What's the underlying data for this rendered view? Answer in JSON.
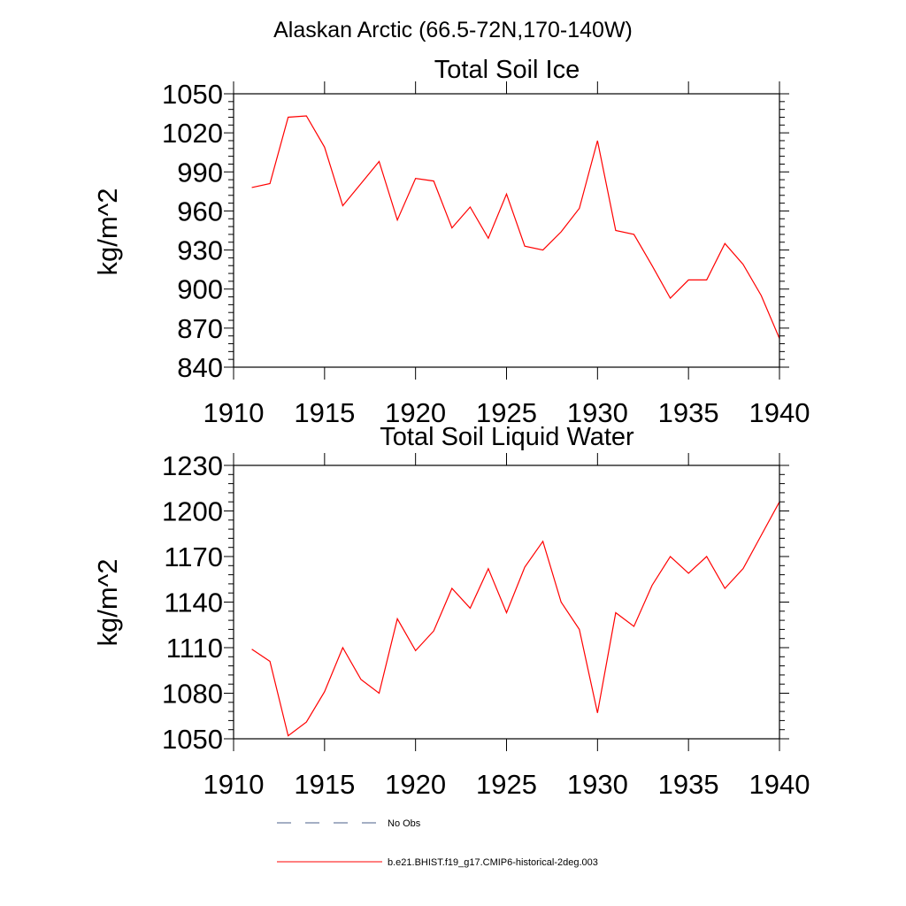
{
  "figure": {
    "suptitle": "Alaskan Arctic (66.5-72N,170-140W)"
  },
  "chart_data": [
    {
      "type": "line",
      "title": "Total Soil Ice",
      "xlabel": "",
      "ylabel": "kg/m^2",
      "xlim": [
        1910,
        1940
      ],
      "ylim": [
        840,
        1050
      ],
      "xticks": [
        1910,
        1915,
        1920,
        1925,
        1930,
        1935,
        1940
      ],
      "yticks": [
        840,
        870,
        900,
        930,
        960,
        990,
        1020,
        1050
      ],
      "grid": false,
      "series": [
        {
          "name": "b.e21.BHIST.f19_g17.CMIP6-historical-2deg.003",
          "color": "#ff0000",
          "x": [
            1911,
            1912,
            1913,
            1914,
            1915,
            1916,
            1917,
            1918,
            1919,
            1920,
            1921,
            1922,
            1923,
            1924,
            1925,
            1926,
            1927,
            1928,
            1929,
            1930,
            1931,
            1932,
            1933,
            1934,
            1935,
            1936,
            1937,
            1938,
            1939,
            1940
          ],
          "y": [
            978,
            981,
            1032,
            1033,
            1009,
            964,
            981,
            998,
            953,
            985,
            983,
            947,
            963,
            939,
            973,
            933,
            930,
            944,
            962,
            1014,
            945,
            942,
            918,
            893,
            907,
            907,
            935,
            919,
            895,
            862
          ]
        }
      ]
    },
    {
      "type": "line",
      "title": "Total Soil Liquid Water",
      "xlabel": "",
      "ylabel": "kg/m^2",
      "xlim": [
        1910,
        1940
      ],
      "ylim": [
        1050,
        1230
      ],
      "xticks": [
        1910,
        1915,
        1920,
        1925,
        1930,
        1935,
        1940
      ],
      "yticks": [
        1050,
        1080,
        1110,
        1140,
        1170,
        1200,
        1230
      ],
      "grid": false,
      "series": [
        {
          "name": "b.e21.BHIST.f19_g17.CMIP6-historical-2deg.003",
          "color": "#ff0000",
          "x": [
            1911,
            1912,
            1913,
            1914,
            1915,
            1916,
            1917,
            1918,
            1919,
            1920,
            1921,
            1922,
            1923,
            1924,
            1925,
            1926,
            1927,
            1928,
            1929,
            1930,
            1931,
            1932,
            1933,
            1934,
            1935,
            1936,
            1937,
            1938,
            1939,
            1940
          ],
          "y": [
            1109,
            1101,
            1052,
            1061,
            1081,
            1110,
            1089,
            1080,
            1129,
            1108,
            1121,
            1149,
            1136,
            1162,
            1133,
            1163,
            1180,
            1140,
            1122,
            1067,
            1133,
            1124,
            1151,
            1170,
            1159,
            1170,
            1149,
            1162,
            1184,
            1206
          ]
        }
      ]
    }
  ],
  "legend": [
    {
      "label": "No Obs",
      "color": "#4a5f8a",
      "dash": true
    },
    {
      "label": "b.e21.BHIST.f19_g17.CMIP6-historical-2deg.003",
      "color": "#ff0000",
      "dash": false
    }
  ]
}
